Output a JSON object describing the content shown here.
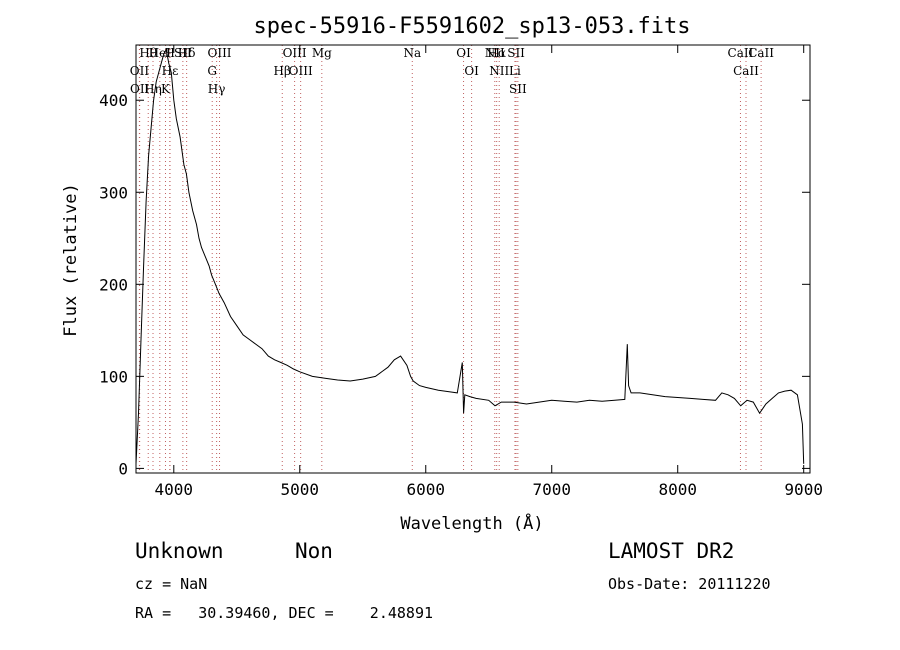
{
  "chart_data": {
    "type": "line",
    "title": "spec-55916-F5591602_sp13-053.fits",
    "xlabel": "Wavelength (Å)",
    "ylabel": "Flux (relative)",
    "xlim": [
      3700,
      9050
    ],
    "ylim": [
      -5,
      460
    ],
    "x_ticks": [
      4000,
      5000,
      6000,
      7000,
      8000,
      9000
    ],
    "y_ticks": [
      0,
      100,
      200,
      300,
      400
    ],
    "grid": false,
    "line_color": "#000000",
    "marker_line_color": "#c06060",
    "series": [
      {
        "x": [
          3700,
          3720,
          3740,
          3760,
          3780,
          3800,
          3820,
          3840,
          3860,
          3880,
          3900,
          3920,
          3940,
          3960,
          3980,
          4000,
          4020,
          4050,
          4080,
          4100,
          4120,
          4150,
          4180,
          4200,
          4220,
          4250,
          4280,
          4300,
          4330,
          4360,
          4400,
          4450,
          4500,
          4550,
          4600,
          4650,
          4700,
          4750,
          4800,
          4850,
          4900,
          4950,
          5000,
          5100,
          5200,
          5300,
          5400,
          5500,
          5600,
          5700,
          5750,
          5800,
          5850,
          5880,
          5900,
          5950,
          6000,
          6100,
          6200,
          6250,
          6290,
          6300,
          6310,
          6350,
          6400,
          6500,
          6550,
          6600,
          6700,
          6800,
          6900,
          7000,
          7100,
          7200,
          7300,
          7400,
          7500,
          7580,
          7600,
          7610,
          7630,
          7700,
          7800,
          7900,
          8000,
          8100,
          8200,
          8300,
          8350,
          8400,
          8450,
          8500,
          8550,
          8600,
          8650,
          8700,
          8750,
          8800,
          8850,
          8900,
          8950,
          8990,
          9000
        ],
        "y": [
          5,
          60,
          140,
          220,
          290,
          340,
          370,
          400,
          420,
          430,
          440,
          450,
          455,
          440,
          430,
          400,
          380,
          360,
          330,
          320,
          300,
          280,
          265,
          250,
          240,
          230,
          220,
          210,
          200,
          190,
          180,
          165,
          155,
          145,
          140,
          135,
          130,
          122,
          118,
          115,
          112,
          108,
          105,
          100,
          98,
          96,
          95,
          97,
          100,
          110,
          118,
          122,
          112,
          100,
          95,
          90,
          88,
          85,
          83,
          82,
          115,
          60,
          80,
          78,
          76,
          74,
          68,
          72,
          72,
          70,
          72,
          74,
          73,
          72,
          74,
          73,
          74,
          75,
          135,
          90,
          82,
          82,
          80,
          78,
          77,
          76,
          75,
          74,
          82,
          80,
          76,
          68,
          74,
          72,
          60,
          70,
          76,
          82,
          84,
          85,
          80,
          48,
          5
        ]
      }
    ],
    "lines": [
      {
        "name": "Hα",
        "wave": 6563
      },
      {
        "name": "Hβ",
        "wave": 4861
      },
      {
        "name": "Hγ",
        "wave": 4340
      },
      {
        "name": "Hδ",
        "wave": 4102
      },
      {
        "name": "Hε",
        "wave": 3970
      },
      {
        "name": "Hη",
        "wave": 3835
      },
      {
        "name": "Hθ",
        "wave": 3797
      },
      {
        "name": "H",
        "wave": 3968
      },
      {
        "name": "K",
        "wave": 3934
      },
      {
        "name": "HeI",
        "wave": 3889
      },
      {
        "name": "OII",
        "wave": 3727
      },
      {
        "name": "OII",
        "wave": 3729
      },
      {
        "name": "SII",
        "wave": 4072
      },
      {
        "name": "OIII",
        "wave": 4363
      },
      {
        "name": "G",
        "wave": 4305
      },
      {
        "name": "OIII",
        "wave": 4959
      },
      {
        "name": "OIII",
        "wave": 5007
      },
      {
        "name": "Mg",
        "wave": 5175
      },
      {
        "name": "Na",
        "wave": 5893
      },
      {
        "name": "OI",
        "wave": 6300
      },
      {
        "name": "OI",
        "wave": 6364
      },
      {
        "name": "NII",
        "wave": 6548
      },
      {
        "name": "NII",
        "wave": 6583
      },
      {
        "name": "SII",
        "wave": 6717
      },
      {
        "name": "SII",
        "wave": 6731
      },
      {
        "name": "Li",
        "wave": 6708
      },
      {
        "name": "CaII",
        "wave": 8498
      },
      {
        "name": "CaII",
        "wave": 8542
      },
      {
        "name": "CaII",
        "wave": 8662
      }
    ]
  },
  "info": {
    "classification": "Unknown",
    "subclass": "Non",
    "survey": "LAMOST DR2",
    "cz": "cz = NaN",
    "obs_date": "Obs-Date: 20111220",
    "coords": "RA =   30.39460, DEC =    2.48891"
  }
}
